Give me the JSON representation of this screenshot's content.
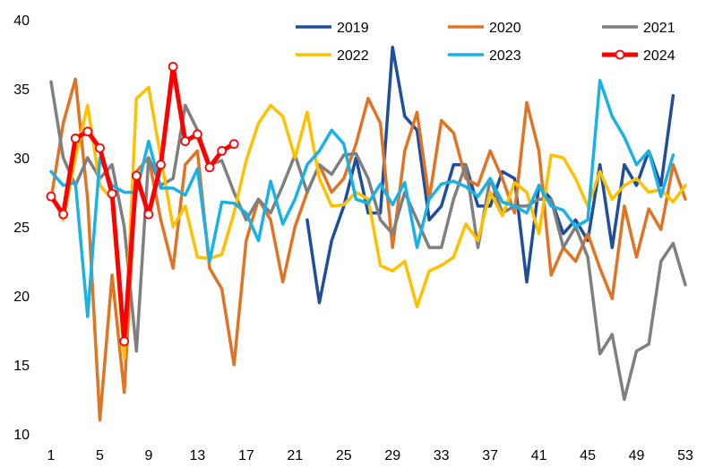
{
  "chart_data": {
    "type": "line",
    "title": "",
    "xlabel": "",
    "ylabel": "",
    "xlim": [
      1,
      53
    ],
    "ylim": [
      10,
      40
    ],
    "x_ticks": [
      "1",
      "5",
      "9",
      "13",
      "17",
      "21",
      "25",
      "29",
      "33",
      "37",
      "41",
      "45",
      "49",
      "53"
    ],
    "y_ticks": [
      "10",
      "15",
      "20",
      "25",
      "30",
      "35",
      "40"
    ],
    "legend": "top-right",
    "series": [
      {
        "name": "2019",
        "color": "#1f4e9a",
        "width": 3.5,
        "markers": false,
        "points": [
          [
            22,
            25.5
          ],
          [
            23,
            19.5
          ],
          [
            24,
            24
          ],
          [
            25,
            26.5
          ],
          [
            26,
            30
          ],
          [
            27,
            26
          ],
          [
            28,
            26
          ],
          [
            29,
            38
          ],
          [
            30,
            33
          ],
          [
            31,
            32
          ],
          [
            32,
            25.5
          ],
          [
            33,
            26.5
          ],
          [
            34,
            29.5
          ],
          [
            35,
            29.5
          ],
          [
            36,
            26.5
          ],
          [
            37,
            26.5
          ],
          [
            38,
            29
          ],
          [
            39,
            28.5
          ],
          [
            40,
            21
          ],
          [
            41,
            28
          ],
          [
            42,
            27
          ],
          [
            43,
            24.5
          ],
          [
            44,
            25.5
          ],
          [
            45,
            24
          ],
          [
            46,
            29.5
          ],
          [
            47,
            23.5
          ],
          [
            48,
            29.5
          ],
          [
            49,
            28
          ],
          [
            50,
            30.5
          ],
          [
            51,
            28
          ],
          [
            52,
            34.5
          ]
        ]
      },
      {
        "name": "2020",
        "color": "#e07424",
        "width": 3.5,
        "markers": false,
        "points": [
          [
            1,
            27
          ],
          [
            2,
            32.5
          ],
          [
            3,
            35.7
          ],
          [
            4,
            27
          ],
          [
            5,
            11
          ],
          [
            6,
            21.5
          ],
          [
            7,
            13
          ],
          [
            8,
            29
          ],
          [
            9,
            30
          ],
          [
            10,
            25.5
          ],
          [
            11,
            22
          ],
          [
            12,
            29.5
          ],
          [
            13,
            30.5
          ],
          [
            14,
            22
          ],
          [
            15,
            20.5
          ],
          [
            16,
            15
          ],
          [
            17,
            24
          ],
          [
            18,
            27
          ],
          [
            19,
            25.5
          ],
          [
            20,
            21
          ],
          [
            21,
            25
          ],
          [
            22,
            27.5
          ],
          [
            23,
            29.5
          ],
          [
            24,
            27.5
          ],
          [
            25,
            28.5
          ],
          [
            26,
            31
          ],
          [
            27,
            34.3
          ],
          [
            28,
            32.5
          ],
          [
            29,
            23.5
          ],
          [
            30,
            30.5
          ],
          [
            31,
            33.3
          ],
          [
            32,
            27
          ],
          [
            33,
            32.7
          ],
          [
            34,
            31.8
          ],
          [
            35,
            28.5
          ],
          [
            36,
            28
          ],
          [
            37,
            30.5
          ],
          [
            38,
            28.5
          ],
          [
            39,
            26
          ],
          [
            40,
            34
          ],
          [
            41,
            30.5
          ],
          [
            42,
            21.5
          ],
          [
            43,
            23.5
          ],
          [
            44,
            22.5
          ],
          [
            45,
            24.5
          ],
          [
            46,
            22
          ],
          [
            47,
            19.8
          ],
          [
            48,
            26.5
          ],
          [
            49,
            22.8
          ],
          [
            50,
            26.3
          ],
          [
            51,
            24.8
          ],
          [
            52,
            29.5
          ],
          [
            53,
            27
          ]
        ]
      },
      {
        "name": "2021",
        "color": "#7f7f7f",
        "width": 3.5,
        "markers": false,
        "points": [
          [
            1,
            35.5
          ],
          [
            2,
            30
          ],
          [
            3,
            28
          ],
          [
            4,
            30
          ],
          [
            5,
            28.5
          ],
          [
            6,
            29.5
          ],
          [
            7,
            25
          ],
          [
            8,
            16
          ],
          [
            9,
            30
          ],
          [
            10,
            28
          ],
          [
            11,
            28.5
          ],
          [
            12,
            33.8
          ],
          [
            13,
            32
          ],
          [
            14,
            29.5
          ],
          [
            15,
            29.8
          ],
          [
            16,
            27.5
          ],
          [
            17,
            25.5
          ],
          [
            18,
            27
          ],
          [
            19,
            26
          ],
          [
            20,
            28
          ],
          [
            21,
            30.2
          ],
          [
            22,
            27.5
          ],
          [
            23,
            29.5
          ],
          [
            24,
            28.8
          ],
          [
            25,
            30.2
          ],
          [
            26,
            30.3
          ],
          [
            27,
            28.5
          ],
          [
            28,
            25.5
          ],
          [
            29,
            24.5
          ],
          [
            30,
            27.5
          ],
          [
            31,
            25.5
          ],
          [
            32,
            23.5
          ],
          [
            33,
            23.5
          ],
          [
            34,
            27
          ],
          [
            35,
            29.5
          ],
          [
            36,
            23.5
          ],
          [
            37,
            28.5
          ],
          [
            38,
            26
          ],
          [
            39,
            26.5
          ],
          [
            40,
            26.5
          ],
          [
            41,
            27
          ],
          [
            42,
            27
          ],
          [
            43,
            23.5
          ],
          [
            44,
            25
          ],
          [
            45,
            22.8
          ],
          [
            46,
            15.8
          ],
          [
            47,
            17.2
          ],
          [
            48,
            12.5
          ],
          [
            49,
            16
          ],
          [
            50,
            16.5
          ],
          [
            51,
            22.5
          ],
          [
            52,
            23.8
          ],
          [
            53,
            20.8
          ]
        ]
      },
      {
        "name": "2022",
        "color": "#ffc000",
        "width": 3.5,
        "markers": false,
        "points": [
          [
            1,
            27.5
          ],
          [
            2,
            25.5
          ],
          [
            3,
            30
          ],
          [
            4,
            33.8
          ],
          [
            5,
            28
          ],
          [
            6,
            27
          ],
          [
            7,
            15.5
          ],
          [
            8,
            34.3
          ],
          [
            9,
            35.1
          ],
          [
            10,
            30
          ],
          [
            11,
            25
          ],
          [
            12,
            26.5
          ],
          [
            13,
            22.8
          ],
          [
            14,
            22.7
          ],
          [
            15,
            23
          ],
          [
            16,
            26
          ],
          [
            17,
            29.8
          ],
          [
            18,
            32.5
          ],
          [
            19,
            33.8
          ],
          [
            20,
            33
          ],
          [
            21,
            30
          ],
          [
            22,
            33.3
          ],
          [
            23,
            28.5
          ],
          [
            24,
            26.5
          ],
          [
            25,
            26.6
          ],
          [
            26,
            27.5
          ],
          [
            27,
            27
          ],
          [
            28,
            22.2
          ],
          [
            29,
            21.8
          ],
          [
            30,
            22.5
          ],
          [
            31,
            19.2
          ],
          [
            32,
            21.8
          ],
          [
            33,
            22.2
          ],
          [
            34,
            22.8
          ],
          [
            35,
            25.2
          ],
          [
            36,
            24
          ],
          [
            37,
            27.5
          ],
          [
            38,
            25.8
          ],
          [
            39,
            28.2
          ],
          [
            40,
            27.5
          ],
          [
            41,
            24.5
          ],
          [
            42,
            30.2
          ],
          [
            43,
            30
          ],
          [
            44,
            28.5
          ],
          [
            45,
            26.5
          ],
          [
            46,
            29
          ],
          [
            47,
            27
          ],
          [
            48,
            28
          ],
          [
            49,
            28.5
          ],
          [
            50,
            27.5
          ],
          [
            51,
            27.7
          ],
          [
            52,
            26.8
          ],
          [
            53,
            28
          ]
        ]
      },
      {
        "name": "2023",
        "color": "#19b2e6",
        "width": 3.5,
        "markers": false,
        "points": [
          [
            1,
            29
          ],
          [
            2,
            28
          ],
          [
            3,
            28.2
          ],
          [
            4,
            18.5
          ],
          [
            5,
            30
          ],
          [
            6,
            28
          ],
          [
            7,
            27.5
          ],
          [
            8,
            27.5
          ],
          [
            9,
            31.2
          ],
          [
            10,
            27.8
          ],
          [
            11,
            27.8
          ],
          [
            12,
            27.3
          ],
          [
            13,
            29.2
          ],
          [
            14,
            22.5
          ],
          [
            15,
            26.8
          ],
          [
            16,
            26.7
          ],
          [
            17,
            26
          ],
          [
            18,
            24
          ],
          [
            19,
            28.3
          ],
          [
            20,
            25.2
          ],
          [
            21,
            27
          ],
          [
            22,
            29.5
          ],
          [
            23,
            30.5
          ],
          [
            24,
            32
          ],
          [
            25,
            31
          ],
          [
            26,
            27
          ],
          [
            27,
            26.7
          ],
          [
            28,
            28.1
          ],
          [
            29,
            26.6
          ],
          [
            30,
            28.2
          ],
          [
            31,
            23.5
          ],
          [
            32,
            27
          ],
          [
            33,
            28.1
          ],
          [
            34,
            28.3
          ],
          [
            35,
            27.9
          ],
          [
            36,
            27.2
          ],
          [
            37,
            28.5
          ],
          [
            38,
            26.8
          ],
          [
            39,
            26.5
          ],
          [
            40,
            26
          ],
          [
            41,
            28
          ],
          [
            42,
            26.5
          ],
          [
            43,
            26.2
          ],
          [
            44,
            25
          ],
          [
            45,
            25.5
          ],
          [
            46,
            35.6
          ],
          [
            47,
            33
          ],
          [
            48,
            31.5
          ],
          [
            49,
            29.5
          ],
          [
            50,
            30.5
          ],
          [
            51,
            27.2
          ],
          [
            52,
            30.2
          ]
        ]
      },
      {
        "name": "2024",
        "color": "#ff0000",
        "width": 5,
        "markers": true,
        "points": [
          [
            1,
            27.2
          ],
          [
            2,
            25.9
          ],
          [
            3,
            31.4
          ],
          [
            4,
            31.9
          ],
          [
            5,
            30.7
          ],
          [
            6,
            27.4
          ],
          [
            7,
            16.7
          ],
          [
            8,
            28.7
          ],
          [
            9,
            25.9
          ],
          [
            10,
            29.5
          ],
          [
            11,
            36.6
          ],
          [
            12,
            31.2
          ],
          [
            13,
            31.7
          ],
          [
            14,
            29.3
          ],
          [
            15,
            30.5
          ],
          [
            16,
            31
          ]
        ]
      }
    ]
  }
}
